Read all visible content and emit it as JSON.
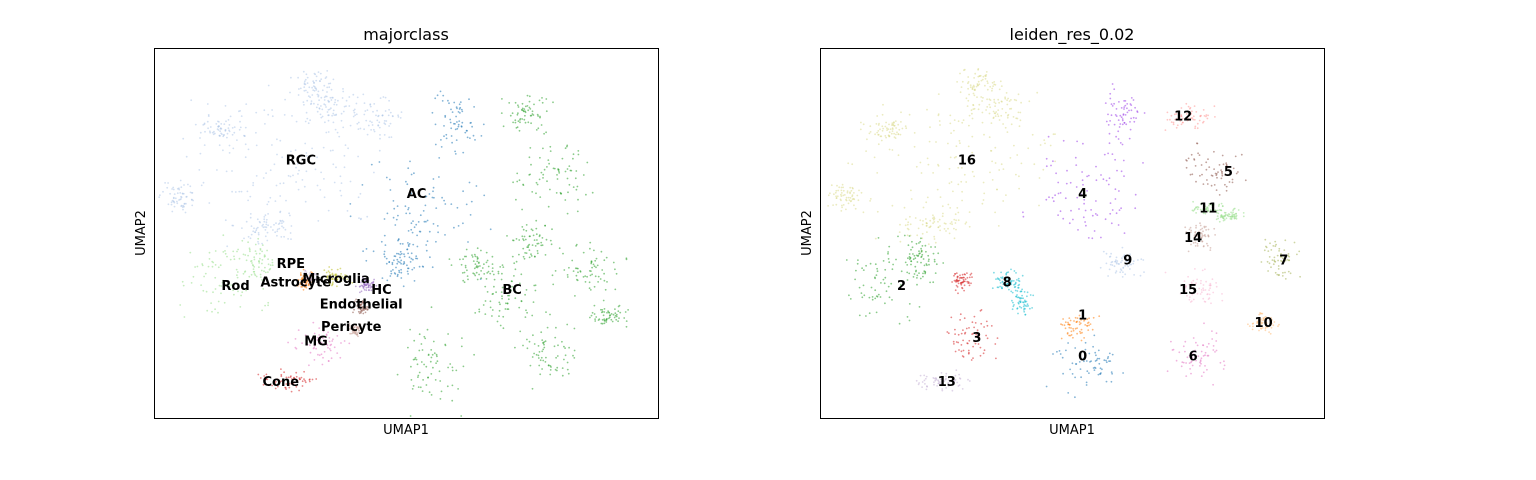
{
  "chart_data": [
    {
      "type": "scatter",
      "title": "majorclass",
      "xlabel": "UMAP1",
      "ylabel": "UMAP2",
      "legend": "on data",
      "grid": false,
      "clusters": [
        {
          "label": "RGC",
          "color": "#aec7e8",
          "blobs": [
            [
              0.26,
              0.3,
              0.22,
              0.24
            ],
            [
              0.13,
              0.22,
              0.05,
              0.04
            ],
            [
              0.35,
              0.16,
              0.06,
              0.05
            ],
            [
              0.44,
              0.18,
              0.06,
              0.06
            ],
            [
              0.22,
              0.48,
              0.07,
              0.05
            ],
            [
              0.32,
              0.1,
              0.05,
              0.05
            ],
            [
              0.05,
              0.4,
              0.04,
              0.04
            ]
          ]
        },
        {
          "label": "AC",
          "color": "#1f77b4",
          "blobs": [
            [
              0.52,
              0.45,
              0.14,
              0.19
            ],
            [
              0.6,
              0.2,
              0.05,
              0.1
            ],
            [
              0.48,
              0.58,
              0.05,
              0.06
            ]
          ]
        },
        {
          "label": "BC",
          "color": "#2ca02c",
          "blobs": [
            [
              0.79,
              0.34,
              0.08,
              0.11
            ],
            [
              0.74,
              0.17,
              0.05,
              0.06
            ],
            [
              0.86,
              0.6,
              0.08,
              0.07
            ],
            [
              0.75,
              0.52,
              0.05,
              0.06
            ],
            [
              0.7,
              0.67,
              0.07,
              0.08
            ],
            [
              0.78,
              0.82,
              0.06,
              0.1
            ],
            [
              0.55,
              0.85,
              0.08,
              0.14
            ],
            [
              0.9,
              0.72,
              0.05,
              0.04
            ],
            [
              0.64,
              0.59,
              0.05,
              0.05
            ]
          ]
        },
        {
          "label": "Rod",
          "color": "#98df8a",
          "blobs": [
            [
              0.13,
              0.63,
              0.1,
              0.12
            ],
            [
              0.2,
              0.57,
              0.04,
              0.06
            ]
          ]
        },
        {
          "label": "MG",
          "color": "#e377c2",
          "blobs": [
            [
              0.33,
              0.8,
              0.06,
              0.06
            ]
          ]
        },
        {
          "label": "Cone",
          "color": "#d62728",
          "blobs": [
            [
              0.26,
              0.9,
              0.06,
              0.03
            ]
          ]
        },
        {
          "label": "RPE",
          "color": "#ff7f0e",
          "blobs": [
            [
              0.3,
              0.63,
              0.02,
              0.03
            ]
          ]
        },
        {
          "label": "Astrocyte",
          "color": "#c5b0d5",
          "blobs": [
            [
              0.31,
              0.62,
              0.015,
              0.02
            ]
          ]
        },
        {
          "label": "Microglia",
          "color": "#bcbd22",
          "blobs": [
            [
              0.36,
              0.62,
              0.03,
              0.03
            ]
          ]
        },
        {
          "label": "HC",
          "color": "#9467bd",
          "blobs": [
            [
              0.42,
              0.64,
              0.02,
              0.02
            ]
          ]
        },
        {
          "label": "Endothelial",
          "color": "#8c564b",
          "blobs": [
            [
              0.41,
              0.7,
              0.015,
              0.02
            ]
          ]
        },
        {
          "label": "Pericyte",
          "color": "#c49c94",
          "blobs": [
            [
              0.4,
              0.76,
              0.015,
              0.02
            ]
          ]
        }
      ],
      "labels": [
        {
          "text": "RGC",
          "x": 0.29,
          "y": 0.3
        },
        {
          "text": "AC",
          "x": 0.52,
          "y": 0.39
        },
        {
          "text": "RPE",
          "x": 0.27,
          "y": 0.58
        },
        {
          "text": "Astrocyte",
          "x": 0.28,
          "y": 0.63
        },
        {
          "text": "Microglia",
          "x": 0.36,
          "y": 0.62
        },
        {
          "text": "HC",
          "x": 0.45,
          "y": 0.65
        },
        {
          "text": "Rod",
          "x": 0.16,
          "y": 0.64
        },
        {
          "text": "BC",
          "x": 0.71,
          "y": 0.65
        },
        {
          "text": "Endothelial",
          "x": 0.41,
          "y": 0.69
        },
        {
          "text": "Pericyte",
          "x": 0.39,
          "y": 0.75
        },
        {
          "text": "MG",
          "x": 0.32,
          "y": 0.79
        },
        {
          "text": "Cone",
          "x": 0.25,
          "y": 0.9
        }
      ]
    },
    {
      "type": "scatter",
      "title": "leiden_res_0.02",
      "xlabel": "UMAP1",
      "ylabel": "UMAP2",
      "legend": "on data",
      "grid": false,
      "clusters": [
        {
          "label": "16",
          "color": "#dbdb8d",
          "blobs": [
            [
              0.26,
              0.3,
              0.22,
              0.24
            ],
            [
              0.13,
              0.22,
              0.05,
              0.04
            ],
            [
              0.35,
              0.16,
              0.06,
              0.05
            ],
            [
              0.22,
              0.48,
              0.07,
              0.05
            ],
            [
              0.32,
              0.1,
              0.05,
              0.05
            ],
            [
              0.05,
              0.4,
              0.04,
              0.04
            ]
          ]
        },
        {
          "label": "4",
          "color": "#9a3ee8",
          "blobs": [
            [
              0.52,
              0.4,
              0.11,
              0.17
            ],
            [
              0.6,
              0.18,
              0.04,
              0.08
            ]
          ]
        },
        {
          "label": "12",
          "color": "#ff9896",
          "blobs": [
            [
              0.73,
              0.18,
              0.05,
              0.04
            ]
          ]
        },
        {
          "label": "5",
          "color": "#8c564b",
          "blobs": [
            [
              0.79,
              0.33,
              0.07,
              0.07
            ]
          ]
        },
        {
          "label": "11",
          "color": "#98df8a",
          "blobs": [
            [
              0.77,
              0.43,
              0.04,
              0.02
            ],
            [
              0.81,
              0.45,
              0.03,
              0.02
            ]
          ]
        },
        {
          "label": "14",
          "color": "#c49c94",
          "blobs": [
            [
              0.75,
              0.51,
              0.04,
              0.04
            ]
          ]
        },
        {
          "label": "7",
          "color": "#a5b35a",
          "blobs": [
            [
              0.91,
              0.57,
              0.04,
              0.05
            ]
          ]
        },
        {
          "label": "9",
          "color": "#aec7e8",
          "blobs": [
            [
              0.6,
              0.58,
              0.04,
              0.04
            ]
          ]
        },
        {
          "label": "15",
          "color": "#f7b6d2",
          "blobs": [
            [
              0.75,
              0.65,
              0.06,
              0.05
            ]
          ]
        },
        {
          "label": "10",
          "color": "#ffbb78",
          "blobs": [
            [
              0.88,
              0.74,
              0.03,
              0.03
            ]
          ]
        },
        {
          "label": "1",
          "color": "#ff7f0e",
          "blobs": [
            [
              0.51,
              0.75,
              0.04,
              0.04
            ]
          ]
        },
        {
          "label": "0",
          "color": "#1f77b4",
          "blobs": [
            [
              0.53,
              0.85,
              0.08,
              0.09
            ]
          ]
        },
        {
          "label": "6",
          "color": "#e377c2",
          "blobs": [
            [
              0.75,
              0.83,
              0.06,
              0.08
            ]
          ]
        },
        {
          "label": "8",
          "color": "#17becf",
          "blobs": [
            [
              0.37,
              0.63,
              0.03,
              0.03
            ],
            [
              0.4,
              0.68,
              0.02,
              0.04
            ]
          ]
        },
        {
          "label": "2",
          "color": "#2ca02c",
          "blobs": [
            [
              0.13,
              0.63,
              0.1,
              0.12
            ],
            [
              0.2,
              0.57,
              0.04,
              0.06
            ]
          ]
        },
        {
          "label": "3",
          "color": "#d62728",
          "blobs": [
            [
              0.3,
              0.78,
              0.06,
              0.07
            ],
            [
              0.28,
              0.63,
              0.02,
              0.03
            ]
          ]
        },
        {
          "label": "13",
          "color": "#c5b0d5",
          "blobs": [
            [
              0.24,
              0.9,
              0.06,
              0.03
            ]
          ]
        }
      ],
      "labels": [
        {
          "text": "12",
          "x": 0.72,
          "y": 0.18
        },
        {
          "text": "16",
          "x": 0.29,
          "y": 0.3
        },
        {
          "text": "5",
          "x": 0.81,
          "y": 0.33
        },
        {
          "text": "4",
          "x": 0.52,
          "y": 0.39
        },
        {
          "text": "11",
          "x": 0.77,
          "y": 0.43
        },
        {
          "text": "14",
          "x": 0.74,
          "y": 0.51
        },
        {
          "text": "7",
          "x": 0.92,
          "y": 0.57
        },
        {
          "text": "9",
          "x": 0.61,
          "y": 0.57
        },
        {
          "text": "2",
          "x": 0.16,
          "y": 0.64
        },
        {
          "text": "8",
          "x": 0.37,
          "y": 0.63
        },
        {
          "text": "15",
          "x": 0.73,
          "y": 0.65
        },
        {
          "text": "1",
          "x": 0.52,
          "y": 0.72
        },
        {
          "text": "10",
          "x": 0.88,
          "y": 0.74
        },
        {
          "text": "3",
          "x": 0.31,
          "y": 0.78
        },
        {
          "text": "0",
          "x": 0.52,
          "y": 0.83
        },
        {
          "text": "6",
          "x": 0.74,
          "y": 0.83
        },
        {
          "text": "13",
          "x": 0.25,
          "y": 0.9
        }
      ]
    }
  ]
}
